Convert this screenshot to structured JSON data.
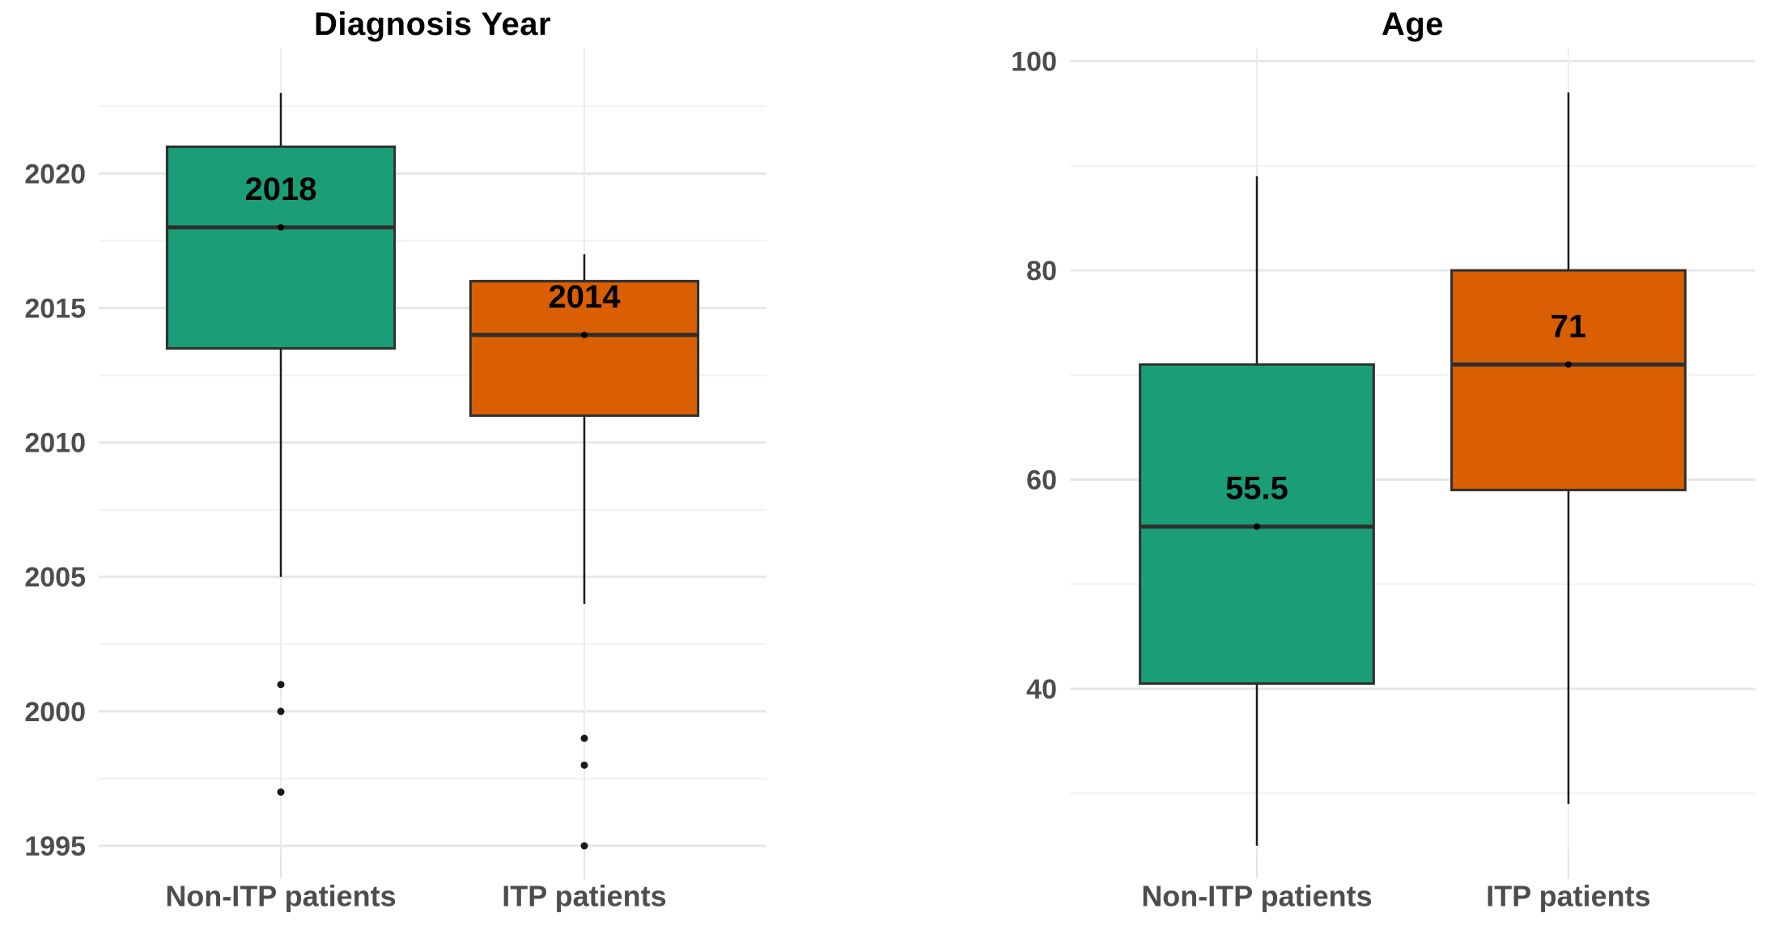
{
  "figure": {
    "kind": "side-by-side box plots",
    "background": "#ffffff"
  },
  "colors": {
    "non_itp_fill": "#1b9e77",
    "itp_fill": "#d95f02",
    "box_border": "#2f2f2f",
    "median_line": "#2f2f2f",
    "whisker": "#1a1a1a",
    "outlier_dot": "#1a1a1a",
    "axis_text": "#4d4d4d",
    "title_text": "#000000",
    "grid_major": "#e7e7e7",
    "grid_minor": "#f1f1f1",
    "axis_tick": "#e3e3e3"
  },
  "chart_data": [
    {
      "type": "box",
      "title": "Diagnosis Year",
      "categories": [
        "Non-ITP patients",
        "ITP patients"
      ],
      "ylim": [
        1994.85,
        2024.65
      ],
      "y_ticks": [
        1995,
        2000,
        2005,
        2010,
        2015,
        2020
      ],
      "y_minor_ticks": [
        1997.5,
        2002.5,
        2007.5,
        2012.5,
        2017.5,
        2022.5
      ],
      "grid": true,
      "legend": false,
      "series": [
        {
          "name": "Non-ITP patients",
          "color": "#1b9e77",
          "whisker_low": 2005,
          "q1": 2013.5,
          "median": 2018,
          "q3": 2021,
          "whisker_high": 2023,
          "outliers": [
            2001,
            2000,
            1997
          ],
          "median_label": "2018"
        },
        {
          "name": "ITP patients",
          "color": "#d95f02",
          "whisker_low": 2004,
          "q1": 2011,
          "median": 2014,
          "q3": 2016,
          "whisker_high": 2017,
          "outliers": [
            1999,
            1998,
            1995
          ],
          "median_label": "2014"
        }
      ]
    },
    {
      "type": "box",
      "title": "Age",
      "categories": [
        "Non-ITP patients",
        "ITP patients"
      ],
      "ylim": [
        24.6,
        101.2
      ],
      "y_ticks": [
        40,
        60,
        80,
        100
      ],
      "y_minor_ticks": [
        30,
        50,
        70,
        90
      ],
      "grid": true,
      "legend": false,
      "series": [
        {
          "name": "Non-ITP patients",
          "color": "#1b9e77",
          "whisker_low": 25,
          "q1": 40.5,
          "median": 55.5,
          "q3": 71,
          "whisker_high": 89,
          "outliers": [],
          "median_label": "55.5"
        },
        {
          "name": "ITP patients",
          "color": "#d95f02",
          "whisker_low": 29,
          "q1": 59,
          "median": 71,
          "q3": 80,
          "whisker_high": 97,
          "outliers": [],
          "median_label": "71"
        }
      ]
    }
  ]
}
